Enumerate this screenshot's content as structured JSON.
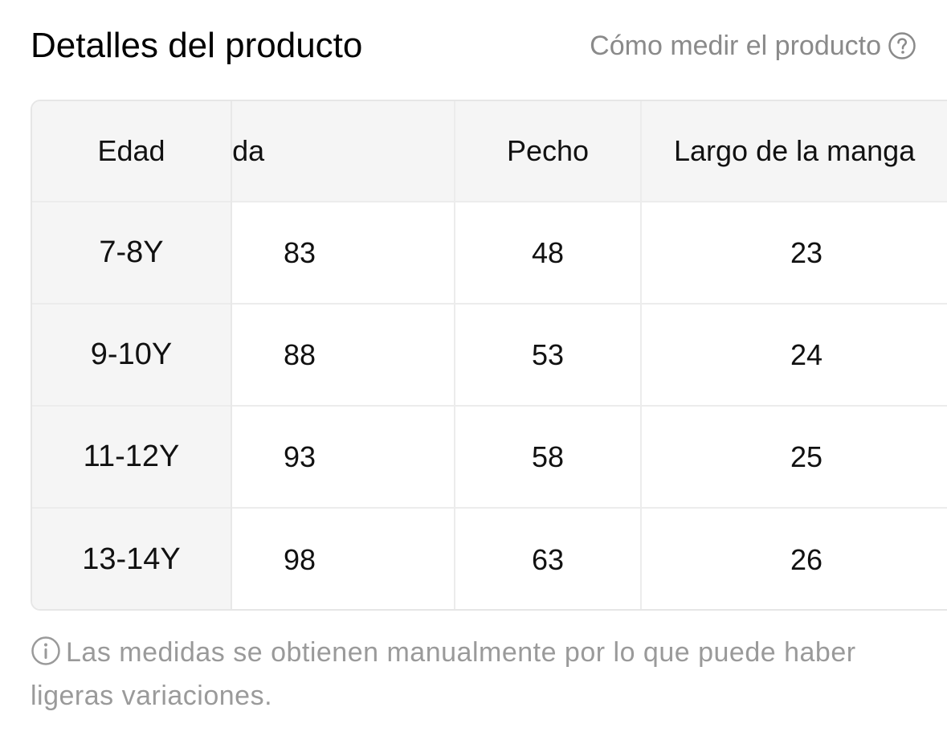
{
  "header": {
    "title": "Detalles del producto",
    "how_to_measure": "Cómo medir el producto",
    "help_icon": "question-circle-icon"
  },
  "table": {
    "columns": [
      {
        "label": "Edad"
      },
      {
        "label": "Largo de la falda"
      },
      {
        "label": "Pecho"
      },
      {
        "label": "Largo de la manga"
      }
    ],
    "rows": [
      {
        "age": "7-8Y",
        "skirt_length": "83",
        "chest": "48",
        "sleeve_length": "23"
      },
      {
        "age": "9-10Y",
        "skirt_length": "88",
        "chest": "53",
        "sleeve_length": "24"
      },
      {
        "age": "11-12Y",
        "skirt_length": "93",
        "chest": "58",
        "sleeve_length": "25"
      },
      {
        "age": "13-14Y",
        "skirt_length": "98",
        "chest": "63",
        "sleeve_length": "26"
      }
    ]
  },
  "note": {
    "icon": "info-circle-icon",
    "text": "Las medidas se obtienen manualmente por lo que puede haber ligeras variaciones."
  },
  "colors": {
    "header_bg": "#f5f5f5",
    "border": "#e6e6e6",
    "muted_text": "#8a8a8a"
  }
}
